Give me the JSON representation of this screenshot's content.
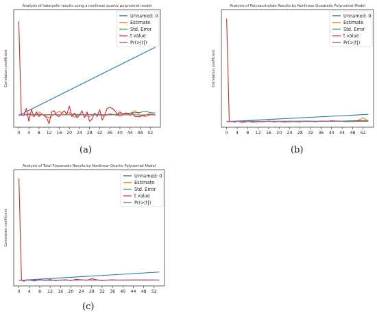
{
  "chart_data": [
    {
      "type": "line",
      "panel_label": "(a)",
      "title": "Analysis of lobetyolin results using a nonlinear quartic polynomial model",
      "ylabel": "Correlation coefficient",
      "xlabel": "",
      "x_ticks": [
        "0",
        "4",
        "8",
        "12",
        "16",
        "20",
        "24",
        "28",
        "32",
        "36",
        "40",
        "44",
        "48",
        "52"
      ],
      "xlim": [
        -2,
        56
      ],
      "ylim": [
        -0.5,
        4.5
      ],
      "grid": false,
      "legend_position": "top-right",
      "series": [
        {
          "name": "Unnamed: 0",
          "color": "#1f77b4",
          "x": [
            0,
            54
          ],
          "y": [
            0.0,
            2.9
          ]
        },
        {
          "name": "Estimate",
          "color": "#ff7f0e",
          "x": [
            0,
            2,
            4,
            6,
            8,
            10,
            12,
            14,
            16,
            18,
            20,
            22,
            24,
            26,
            28,
            30,
            32,
            34,
            36,
            38,
            40,
            42,
            44,
            46,
            48,
            50,
            52,
            54
          ],
          "y": [
            0.02,
            0.0,
            0.1,
            -0.05,
            0.15,
            0.02,
            -0.1,
            0.05,
            0.18,
            0.02,
            0.12,
            -0.08,
            0.04,
            0.02,
            -0.05,
            0.06,
            0.02,
            -0.04,
            0.08,
            0.02,
            -0.03,
            0.05,
            0.08,
            0.2,
            0.0,
            -0.05,
            0.02,
            0.03
          ]
        },
        {
          "name": "Std. Error",
          "color": "#2ca02c",
          "x": [
            0,
            2,
            4,
            6,
            8,
            10,
            12,
            14,
            16,
            18,
            20,
            22,
            24,
            26,
            28,
            30,
            32,
            34,
            36,
            38,
            40,
            42,
            44,
            46,
            48,
            50,
            52,
            54
          ],
          "y": [
            0.03,
            0.02,
            0.04,
            0.03,
            0.05,
            0.02,
            0.03,
            0.04,
            0.03,
            0.02,
            0.03,
            0.05,
            0.04,
            0.03,
            0.04,
            0.05,
            0.04,
            0.03,
            0.05,
            0.04,
            0.06,
            0.08,
            0.1,
            0.12,
            0.13,
            0.18,
            0.12,
            0.1
          ]
        },
        {
          "name": "t value",
          "color": "#d62728",
          "x": [
            0,
            1,
            2,
            3,
            4,
            5,
            6,
            7,
            8,
            9,
            10,
            11,
            12,
            13,
            14,
            15,
            16,
            17,
            18,
            19,
            20,
            21,
            22,
            23,
            24,
            25,
            26,
            27,
            28,
            29,
            30,
            31,
            32,
            33,
            34,
            35,
            36,
            37,
            38,
            39,
            40,
            41,
            42,
            43,
            44,
            45,
            46,
            47,
            48,
            49,
            50,
            51,
            52,
            53,
            54
          ],
          "y": [
            4.0,
            0.05,
            0.0,
            0.3,
            -0.25,
            0.25,
            -0.05,
            0.15,
            -0.05,
            0.05,
            0.0,
            -0.1,
            -0.35,
            0.15,
            0.2,
            0.0,
            -0.05,
            0.1,
            0.2,
            0.05,
            0.4,
            -0.05,
            0.1,
            -0.1,
            0.0,
            0.2,
            -0.1,
            0.15,
            -0.25,
            -0.15,
            0.1,
            -0.05,
            0.25,
            -0.2,
            0.05,
            0.3,
            0.35,
            0.3,
            0.2,
            0.05,
            0.15,
            0.05,
            0.1,
            0.1,
            0.0,
            0.1,
            -0.05,
            -0.05,
            -0.05,
            0.0,
            0.0,
            0.05,
            0.05,
            0.05,
            0.0
          ]
        },
        {
          "name": "Pr(>|t|)",
          "color": "#9467bd",
          "x": [
            0,
            4,
            8,
            12,
            16,
            20,
            24,
            28,
            32,
            36,
            40,
            44,
            48,
            52,
            54
          ],
          "y": [
            0.02,
            0.03,
            0.02,
            0.04,
            0.02,
            0.03,
            0.02,
            0.03,
            0.02,
            0.03,
            0.02,
            0.03,
            0.02,
            0.03,
            0.02
          ]
        }
      ]
    },
    {
      "type": "line",
      "panel_label": "(b)",
      "title": "Analysis of Polysaccharide Results by Nonlinear Quadratic Polynomial Model",
      "ylabel": "Correlation coefficient",
      "xlabel": "",
      "x_ticks": [
        "0",
        "4",
        "8",
        "12",
        "16",
        "20",
        "24",
        "28",
        "32",
        "36",
        "40",
        "44",
        "48",
        "52"
      ],
      "xlim": [
        -2,
        56
      ],
      "ylim": [
        -0.5,
        10
      ],
      "grid": false,
      "legend_position": "top-right",
      "series": [
        {
          "name": "Unnamed: 0",
          "color": "#1f77b4",
          "x": [
            0,
            54
          ],
          "y": [
            0.0,
            0.65
          ]
        },
        {
          "name": "Estimate",
          "color": "#ff7f0e",
          "x": [
            0,
            4,
            8,
            12,
            16,
            20,
            24,
            28,
            32,
            36,
            40,
            44,
            48,
            50,
            52,
            54
          ],
          "y": [
            0.0,
            0.02,
            0.05,
            -0.03,
            0.04,
            0.02,
            -0.02,
            0.05,
            0.02,
            0.03,
            0.05,
            0.02,
            0.05,
            0.1,
            0.35,
            0.05
          ]
        },
        {
          "name": "Std. Error",
          "color": "#2ca02c",
          "x": [
            0,
            8,
            16,
            24,
            32,
            40,
            44,
            48,
            52,
            54
          ],
          "y": [
            0.02,
            0.03,
            0.02,
            0.04,
            0.03,
            0.04,
            0.05,
            0.08,
            0.1,
            0.08
          ]
        },
        {
          "name": "t value",
          "color": "#d62728",
          "x": [
            0,
            1,
            2,
            3,
            4,
            6,
            8,
            10,
            12,
            14,
            16,
            18,
            20,
            22,
            24,
            26,
            28,
            30,
            32,
            34,
            36,
            38,
            40,
            42,
            44,
            46,
            48,
            50,
            52,
            54
          ],
          "y": [
            9.2,
            0.0,
            0.02,
            -0.05,
            0.05,
            -0.08,
            0.02,
            -0.05,
            0.03,
            -0.02,
            0.05,
            -0.03,
            0.02,
            -0.04,
            0.03,
            0.0,
            -0.02,
            0.05,
            0.03,
            0.0,
            0.05,
            0.02,
            0.08,
            0.05,
            0.02,
            0.0,
            0.02,
            0.05,
            0.03,
            0.02
          ]
        },
        {
          "name": "Pr(>|t|)",
          "color": "#9467bd",
          "x": [
            0,
            8,
            16,
            24,
            32,
            40,
            48,
            54
          ],
          "y": [
            0.01,
            0.02,
            0.01,
            0.02,
            0.01,
            0.02,
            0.01,
            0.02
          ]
        }
      ]
    },
    {
      "type": "line",
      "panel_label": "(c)",
      "title": "Analysis of Total Flavonoids Results by Nonlinear Quartic Polynomial Model",
      "ylabel": "Correlation coefficient",
      "xlabel": "",
      "x_ticks": [
        "0",
        "4",
        "8",
        "12",
        "16",
        "20",
        "24",
        "28",
        "32",
        "36",
        "40",
        "44",
        "48",
        "52"
      ],
      "xlim": [
        -2,
        56
      ],
      "ylim": [
        -0.5,
        10
      ],
      "grid": false,
      "legend_position": "top-right",
      "series": [
        {
          "name": "Unnamed: 0",
          "color": "#1f77b4",
          "x": [
            0,
            54
          ],
          "y": [
            0.0,
            0.75
          ]
        },
        {
          "name": "Estimate",
          "color": "#ff7f0e",
          "x": [
            0,
            4,
            8,
            12,
            16,
            20,
            24,
            28,
            32,
            36,
            40,
            44,
            48,
            52,
            54
          ],
          "y": [
            0.0,
            0.02,
            0.03,
            -0.02,
            0.04,
            0.02,
            0.05,
            0.03,
            0.02,
            0.04,
            0.03,
            0.05,
            0.02,
            0.04,
            0.03
          ]
        },
        {
          "name": "Std. Error",
          "color": "#2ca02c",
          "x": [
            0,
            8,
            16,
            24,
            32,
            40,
            48,
            54
          ],
          "y": [
            0.02,
            0.03,
            0.02,
            0.03,
            0.02,
            0.03,
            0.04,
            0.03
          ]
        },
        {
          "name": "t value",
          "color": "#d62728",
          "x": [
            0,
            1,
            2,
            3,
            4,
            6,
            8,
            10,
            12,
            14,
            16,
            18,
            20,
            22,
            24,
            26,
            28,
            30,
            32,
            34,
            36,
            38,
            40,
            44,
            48,
            52,
            54
          ],
          "y": [
            9.2,
            0.0,
            -0.08,
            0.05,
            0.02,
            -0.05,
            0.05,
            0.0,
            0.08,
            -0.03,
            0.02,
            0.05,
            -0.02,
            0.1,
            0.05,
            0.0,
            0.15,
            0.05,
            -0.02,
            0.03,
            0.05,
            0.02,
            0.03,
            0.02,
            0.04,
            0.03,
            0.02
          ]
        },
        {
          "name": "Pr(>|t|)",
          "color": "#9467bd",
          "x": [
            0,
            8,
            16,
            24,
            32,
            40,
            48,
            54
          ],
          "y": [
            0.01,
            0.02,
            0.01,
            0.02,
            0.01,
            0.02,
            0.01,
            0.02
          ]
        }
      ]
    }
  ]
}
